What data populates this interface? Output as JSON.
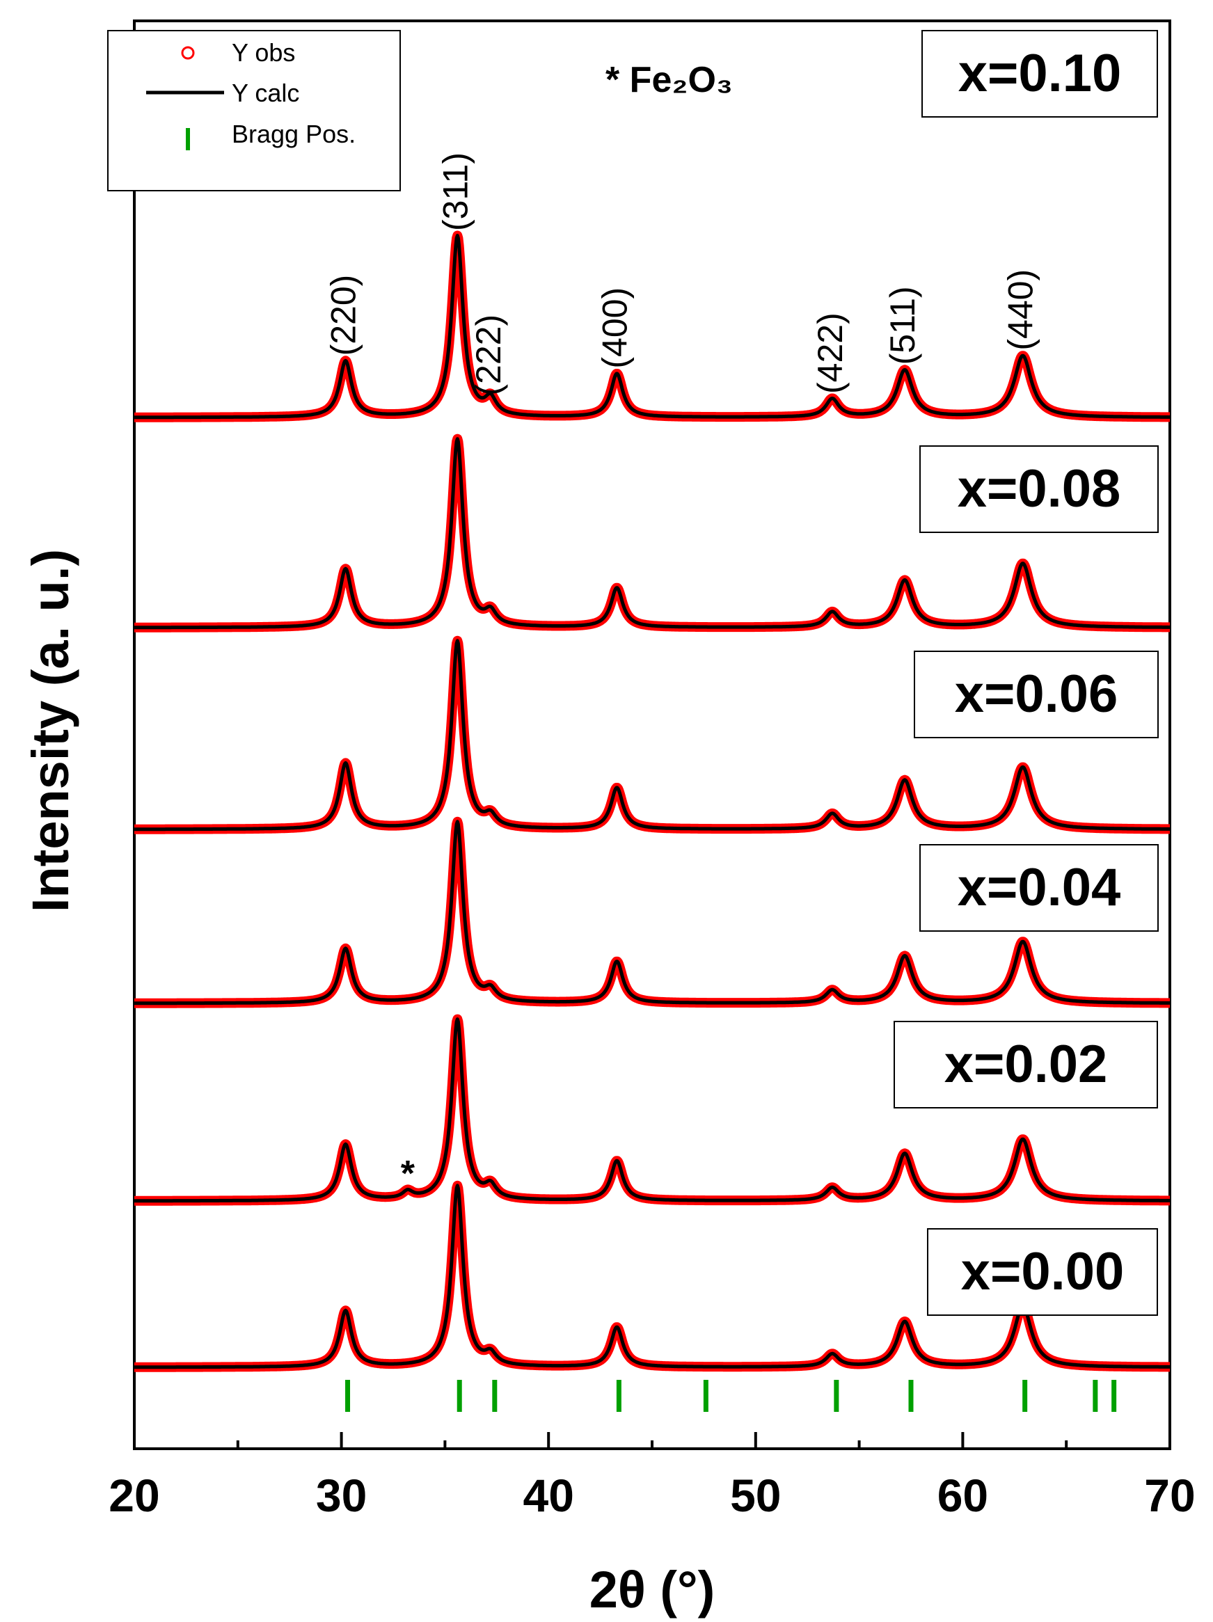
{
  "chart_data": {
    "type": "line",
    "xlabel": "2θ (°)",
    "ylabel": "Intensity (a. u.)",
    "xlim": [
      20,
      70
    ],
    "xticks": [
      "20",
      "30",
      "40",
      "50",
      "60",
      "70"
    ],
    "grid": false,
    "legend": {
      "placement": "top-left",
      "entries": [
        {
          "label": "Y obs",
          "marker": "open-circle",
          "color": "#ff0000"
        },
        {
          "label": "Y calc",
          "marker": "line",
          "color": "#000000"
        },
        {
          "label": "Bragg Pos.",
          "marker": "vertical-tick",
          "color": "#00a000"
        }
      ]
    },
    "annotation_phase": "* Fe₂O₃",
    "impurity_marker": {
      "text": "*",
      "x": 33.2,
      "sample": "x=0.02"
    },
    "peaks": [
      {
        "hkl": "(220)",
        "x": 30.2
      },
      {
        "hkl": "(311)",
        "x": 35.6
      },
      {
        "hkl": "(222)",
        "x": 37.2
      },
      {
        "hkl": "(400)",
        "x": 43.3
      },
      {
        "hkl": "(422)",
        "x": 53.7
      },
      {
        "hkl": "(511)",
        "x": 57.2
      },
      {
        "hkl": "(440)",
        "x": 62.9
      }
    ],
    "bragg_positions": [
      30.3,
      35.7,
      37.4,
      43.4,
      47.6,
      53.9,
      57.5,
      63.0,
      66.4,
      67.3
    ],
    "series": [
      {
        "name": "x=0.10",
        "peak_heights": [
          0.31,
          1.0,
          0.09,
          0.24,
          0.1,
          0.26,
          0.34
        ]
      },
      {
        "name": "x=0.08",
        "peak_heights": [
          0.31,
          1.0,
          0.07,
          0.21,
          0.08,
          0.25,
          0.34
        ]
      },
      {
        "name": "x=0.06",
        "peak_heights": [
          0.35,
          1.0,
          0.06,
          0.22,
          0.08,
          0.26,
          0.33
        ]
      },
      {
        "name": "x=0.04",
        "peak_heights": [
          0.3,
          1.0,
          0.06,
          0.23,
          0.07,
          0.26,
          0.34
        ]
      },
      {
        "name": "x=0.02",
        "peak_heights": [
          0.31,
          1.0,
          0.07,
          0.22,
          0.07,
          0.26,
          0.34
        ]
      },
      {
        "name": "x=0.00",
        "peak_heights": [
          0.31,
          1.0,
          0.06,
          0.22,
          0.07,
          0.25,
          0.34
        ]
      }
    ]
  }
}
